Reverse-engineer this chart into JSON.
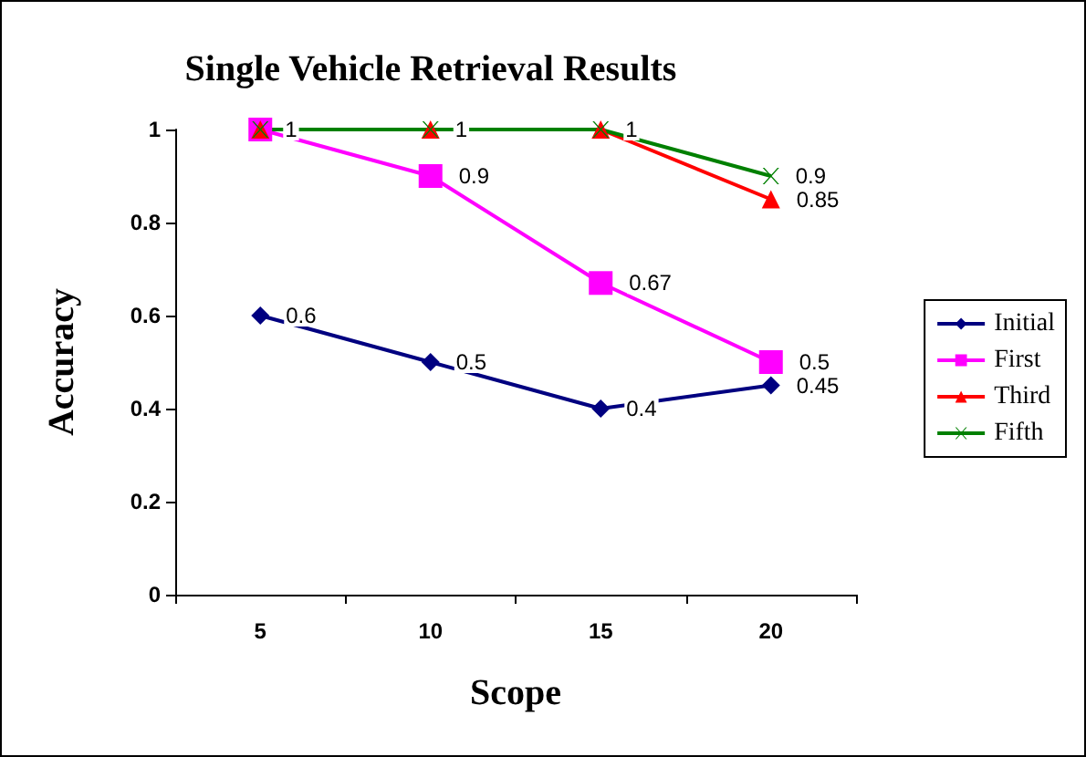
{
  "chart_data": {
    "type": "line",
    "title": "Single Vehicle Retrieval Results",
    "xlabel": "Scope",
    "ylabel": "Accuracy",
    "categories": [
      "5",
      "10",
      "15",
      "20"
    ],
    "ylim": [
      0,
      1
    ],
    "yticks": [
      0,
      0.2,
      0.4,
      0.6,
      0.8,
      1
    ],
    "grid": false,
    "legend": "right",
    "series": [
      {
        "name": "Initial",
        "color": "#000080",
        "marker": "diamond",
        "values": [
          0.6,
          0.5,
          0.4,
          0.45
        ],
        "value_labels": [
          "0.6",
          "0.5",
          "0.4",
          "0.45"
        ]
      },
      {
        "name": "First",
        "color": "#ff00ff",
        "marker": "square",
        "values": [
          1,
          0.9,
          0.67,
          0.5
        ],
        "value_labels": [
          null,
          "0.9",
          "0.67",
          "0.5"
        ]
      },
      {
        "name": "Third",
        "color": "#ff0000",
        "marker": "triangle",
        "values": [
          1,
          1,
          1,
          0.85
        ],
        "value_labels": [
          null,
          null,
          null,
          "0.85"
        ]
      },
      {
        "name": "Fifth",
        "color": "#008000",
        "marker": "cross",
        "values": [
          1,
          1,
          1,
          0.9
        ],
        "value_labels": [
          "1",
          "1",
          "1",
          "0.9"
        ]
      }
    ]
  }
}
